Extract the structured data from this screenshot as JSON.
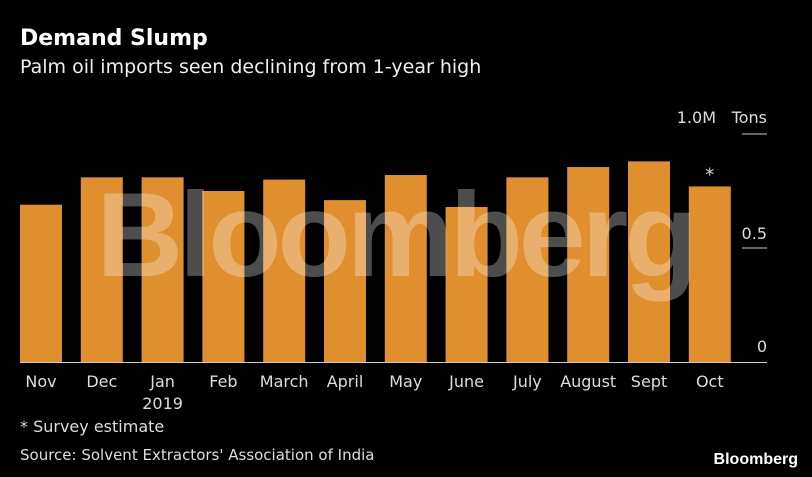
{
  "title": "Demand Slump",
  "subtitle": "Palm oil imports seen declining from 1-year high",
  "chart_data": {
    "type": "bar",
    "categories": [
      "Nov",
      "Dec",
      "Jan",
      "Feb",
      "March",
      "April",
      "May",
      "June",
      "July",
      "August",
      "Sept",
      "Oct"
    ],
    "category_sublabels": {
      "Jan": "2019"
    },
    "values": [
      0.69,
      0.81,
      0.81,
      0.75,
      0.8,
      0.71,
      0.82,
      0.68,
      0.81,
      0.855,
      0.88,
      0.77
    ],
    "annotations": [
      {
        "category": "Oct",
        "text": "*"
      }
    ],
    "ylabel": "Tons",
    "yticks": [
      {
        "value": 0,
        "label": "0"
      },
      {
        "value": 0.5,
        "label": "0.5"
      },
      {
        "value": 1.0,
        "label": "1.0M"
      }
    ],
    "ylim": [
      0,
      1.0
    ],
    "y_axis_position": "right",
    "grid": false,
    "bar_color": "#e08f2f",
    "watermark": "Bloomberg"
  },
  "footnote": "* Survey estimate",
  "source": "Source: Solvent Extractors' Association of India",
  "brand": "Bloomberg"
}
